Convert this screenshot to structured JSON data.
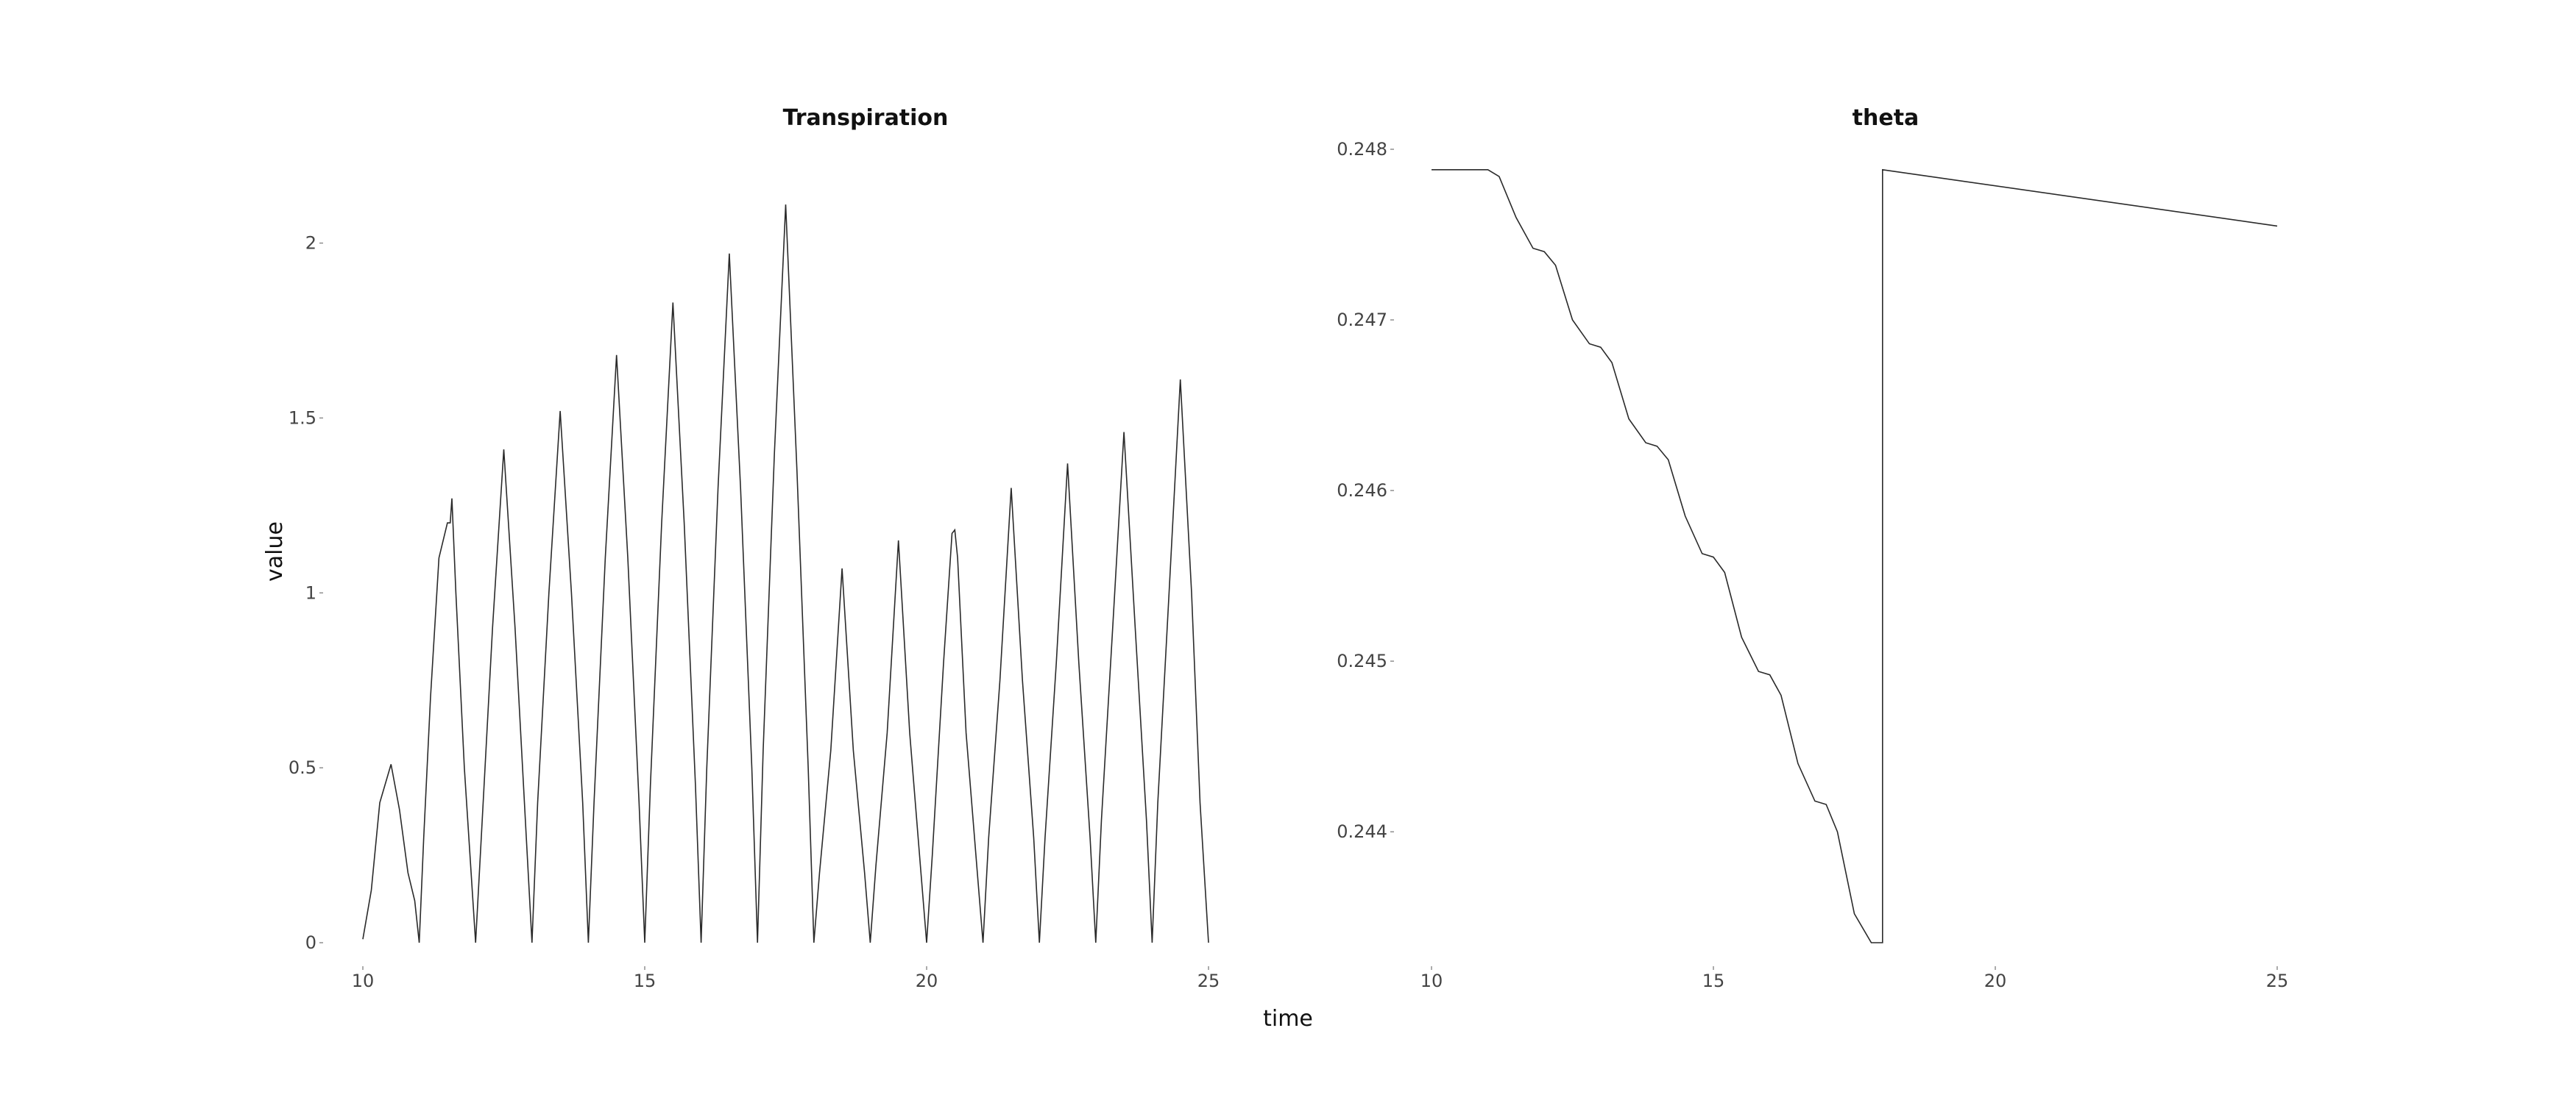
{
  "chart_data": [
    {
      "type": "line",
      "title": "Transpiration",
      "xlabel": "time",
      "ylabel": "value",
      "xlim": [
        9.7,
        25.3
      ],
      "ylim": [
        0,
        2.1
      ],
      "x_ticks": [
        10,
        15,
        20,
        25
      ],
      "x_tick_labels": [
        "10",
        "15",
        "20",
        "25"
      ],
      "y_ticks": [
        0,
        0.5,
        1,
        1.5,
        2
      ],
      "y_tick_labels": [
        "0",
        "0.5",
        "1",
        "1.5",
        "2"
      ],
      "grid": false,
      "color": "#2a2a2a",
      "series": [
        {
          "x": [
            10.0,
            10.15,
            10.3,
            10.5,
            10.65,
            10.8,
            10.92,
            11.0,
            11.08,
            11.2,
            11.35,
            11.5,
            11.55,
            11.58,
            11.65,
            11.8,
            11.92,
            12.0,
            12.1,
            12.3,
            12.5,
            12.7,
            12.9,
            13.0,
            13.1,
            13.3,
            13.5,
            13.7,
            13.9,
            14.0,
            14.1,
            14.3,
            14.5,
            14.7,
            14.9,
            15.0,
            15.1,
            15.3,
            15.5,
            15.7,
            15.9,
            16.0,
            16.1,
            16.3,
            16.5,
            16.7,
            16.9,
            17.0,
            17.1,
            17.3,
            17.5,
            17.7,
            17.9,
            18.0,
            18.1,
            18.3,
            18.5,
            18.7,
            18.9,
            19.0,
            19.1,
            19.3,
            19.5,
            19.7,
            19.9,
            20.0,
            20.1,
            20.3,
            20.45,
            20.5,
            20.55,
            20.7,
            20.9,
            21.0,
            21.1,
            21.3,
            21.5,
            21.7,
            21.9,
            22.0,
            22.1,
            22.3,
            22.5,
            22.7,
            22.9,
            23.0,
            23.1,
            23.3,
            23.5,
            23.7,
            23.9,
            24.0,
            24.1,
            24.3,
            24.5,
            24.7,
            24.85,
            25.0
          ],
          "y": [
            0.01,
            0.15,
            0.4,
            0.51,
            0.38,
            0.2,
            0.12,
            0.0,
            0.3,
            0.7,
            1.1,
            1.2,
            1.2,
            1.27,
            1.0,
            0.5,
            0.2,
            0.0,
            0.3,
            0.9,
            1.41,
            0.9,
            0.3,
            0.0,
            0.4,
            1.0,
            1.52,
            1.0,
            0.4,
            0.0,
            0.4,
            1.1,
            1.68,
            1.1,
            0.4,
            0.0,
            0.45,
            1.2,
            1.83,
            1.2,
            0.45,
            0.0,
            0.5,
            1.3,
            1.97,
            1.3,
            0.5,
            0.0,
            0.55,
            1.4,
            2.11,
            1.35,
            0.5,
            0.0,
            0.2,
            0.55,
            1.07,
            0.55,
            0.2,
            0.0,
            0.22,
            0.6,
            1.15,
            0.6,
            0.2,
            0.0,
            0.25,
            0.8,
            1.17,
            1.18,
            1.1,
            0.6,
            0.2,
            0.0,
            0.3,
            0.75,
            1.3,
            0.75,
            0.3,
            0.0,
            0.3,
            0.8,
            1.37,
            0.8,
            0.3,
            0.0,
            0.35,
            0.9,
            1.46,
            0.9,
            0.35,
            0.0,
            0.4,
            1.0,
            1.61,
            1.0,
            0.4,
            0.0
          ]
        }
      ]
    },
    {
      "type": "line",
      "title": "theta",
      "xlabel": "time",
      "ylabel": "value",
      "xlim": [
        9.7,
        25.3
      ],
      "ylim": [
        0.24335,
        0.248
      ],
      "x_ticks": [
        10,
        15,
        20,
        25
      ],
      "x_tick_labels": [
        "10",
        "15",
        "20",
        "25"
      ],
      "y_ticks": [
        0.244,
        0.245,
        0.246,
        0.247,
        0.248
      ],
      "y_tick_labels": [
        "0.244",
        "0.245",
        "0.246",
        "0.247",
        "0.248"
      ],
      "grid": false,
      "color": "#2a2a2a",
      "series": [
        {
          "x": [
            10.0,
            11.0,
            11.2,
            11.5,
            11.8,
            12.0,
            12.2,
            12.5,
            12.8,
            13.0,
            13.2,
            13.5,
            13.8,
            14.0,
            14.2,
            14.5,
            14.8,
            15.0,
            15.2,
            15.5,
            15.8,
            16.0,
            16.2,
            16.5,
            16.8,
            17.0,
            17.2,
            17.5,
            17.8,
            18.0,
            18.0,
            25.0
          ],
          "y": [
            0.24788,
            0.24788,
            0.24784,
            0.2476,
            0.24742,
            0.2474,
            0.24732,
            0.247,
            0.24686,
            0.24684,
            0.24675,
            0.24642,
            0.24628,
            0.24626,
            0.24618,
            0.24585,
            0.24563,
            0.24561,
            0.24552,
            0.24514,
            0.24494,
            0.24492,
            0.2448,
            0.2444,
            0.24418,
            0.24416,
            0.244,
            0.24352,
            0.24335,
            0.24335,
            0.24788,
            0.24755
          ]
        }
      ]
    }
  ]
}
